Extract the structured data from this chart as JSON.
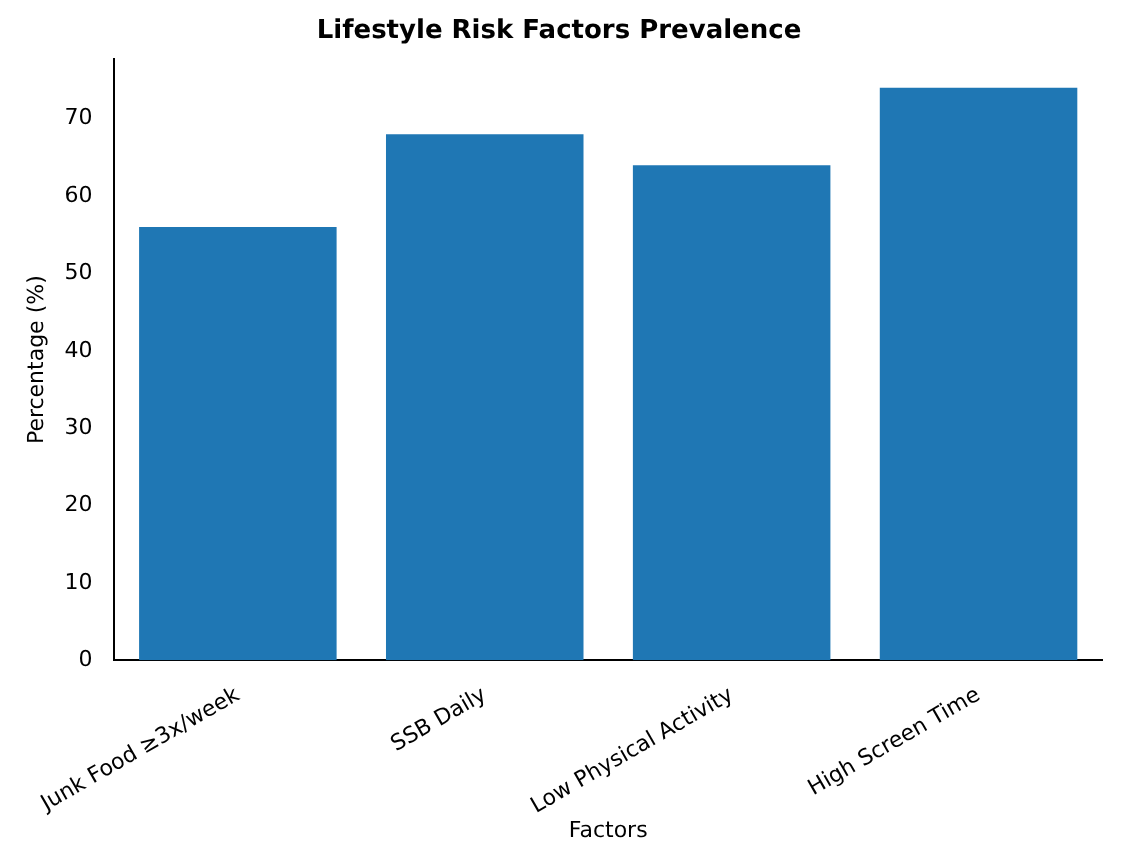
{
  "chart_data": {
    "type": "bar",
    "title": "Lifestyle Risk Factors Prevalence",
    "xlabel": "Factors",
    "ylabel": "Percentage (%)",
    "categories": [
      "Junk Food ≥3x/week",
      "SSB Daily",
      "Low Physical Activity",
      "High Screen Time"
    ],
    "values": [
      56,
      68,
      64,
      74
    ],
    "color": "#1f77b4",
    "ylim": [
      0,
      77.7
    ],
    "yticks": [
      0,
      10,
      20,
      30,
      40,
      50,
      60,
      70
    ],
    "grid": false,
    "legend": false
  }
}
